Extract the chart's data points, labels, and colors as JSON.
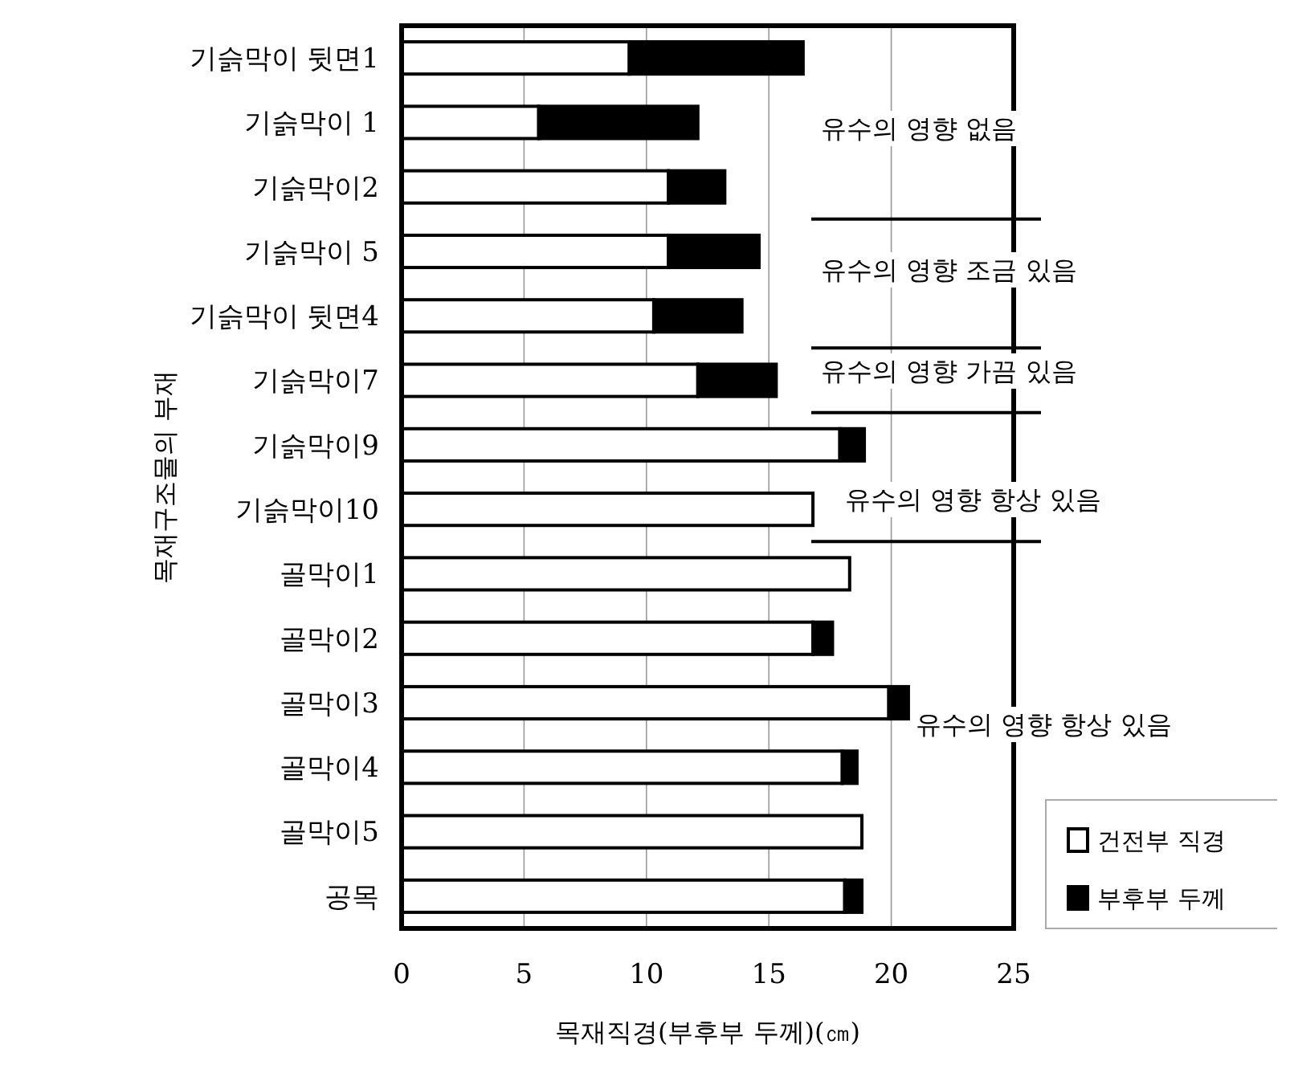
{
  "chart_data": {
    "type": "bar",
    "orientation": "horizontal",
    "stacked": true,
    "xlabel": "목재직경(부후부 두께)(㎝)",
    "ylabel": "목재구조물의 부재",
    "categories": [
      "기슭막이 뒷면1",
      "기슭막이 1",
      "기슭막이2",
      "기슭막이 5",
      "기슭막이 뒷면4",
      "기슭막이7",
      "기슭막이9",
      "기슭막이10",
      "골막이1",
      "골막이2",
      "골막이3",
      "골막이4",
      "골막이5",
      "공목"
    ],
    "series": [
      {
        "name": "건전부 직경",
        "color": "#ffffff",
        "values": [
          9.3,
          5.6,
          10.9,
          10.9,
          10.3,
          12.1,
          17.9,
          16.8,
          18.3,
          16.8,
          19.9,
          18.0,
          18.8,
          18.1
        ]
      },
      {
        "name": "부후부 두께",
        "color": "#000000",
        "values": [
          7.1,
          6.5,
          2.3,
          3.7,
          3.6,
          3.2,
          1.0,
          0,
          0,
          0.8,
          0.8,
          0.6,
          0,
          0.7
        ]
      }
    ],
    "xlim": [
      0,
      25
    ],
    "xticks": [
      0,
      5,
      10,
      15,
      20,
      25
    ],
    "grid": "x",
    "legend": "right",
    "annotations": [
      "유수의 영향 없음",
      "유수의 영향 조금 있음",
      "유수의 영향 가끔 있음",
      "유수의 영향 항상 있음",
      "유수의 영향 항상 있음"
    ]
  }
}
